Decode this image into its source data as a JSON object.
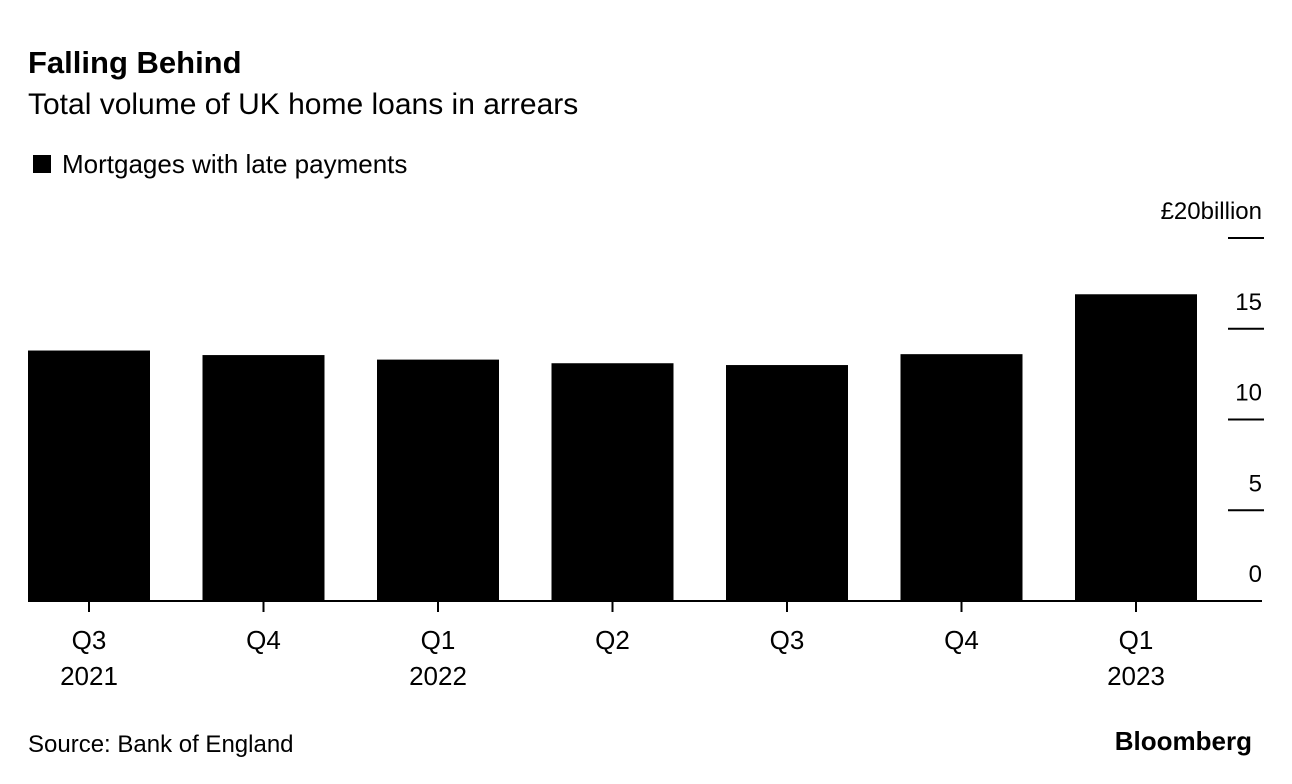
{
  "chart_data": {
    "type": "bar",
    "title": "Falling Behind",
    "subtitle": "Total volume of UK home loans in arrears",
    "categories": [
      "Q3",
      "Q4",
      "Q1",
      "Q2",
      "Q3",
      "Q4",
      "Q1"
    ],
    "category_years": [
      "2021",
      null,
      "2022",
      null,
      null,
      null,
      "2023"
    ],
    "series": [
      {
        "name": "Mortgages with late payments",
        "color": "#000000",
        "values": [
          13.8,
          13.55,
          13.3,
          13.1,
          13.0,
          13.6,
          16.9
        ]
      }
    ],
    "ylim": [
      0,
      20
    ],
    "yticks": [
      0,
      5,
      10,
      15,
      {
        "value": 20,
        "label": "£20billion"
      }
    ],
    "source": "Source: Bank of England",
    "brand": "Bloomberg"
  }
}
